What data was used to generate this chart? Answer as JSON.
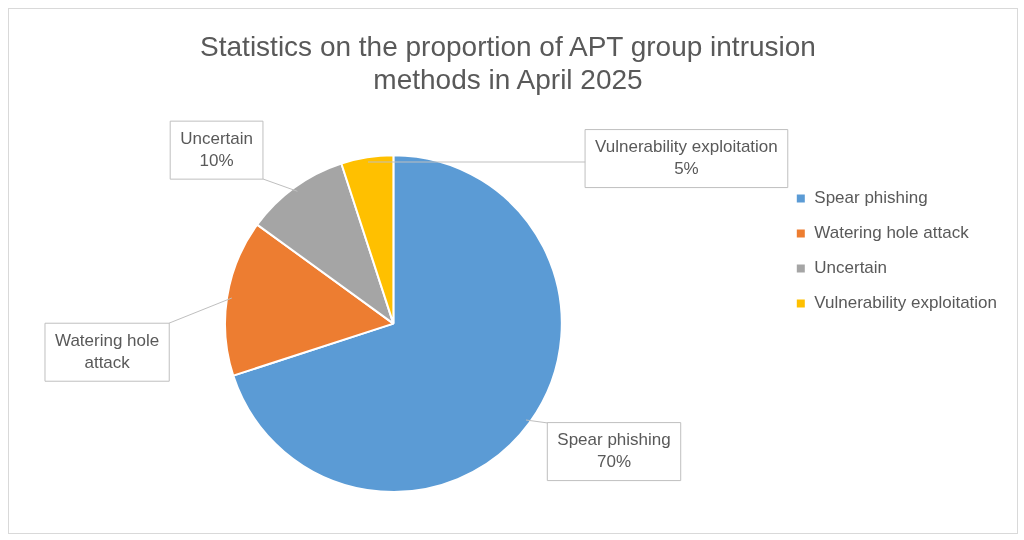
{
  "chart_data": {
    "type": "pie",
    "title": "Statistics on the proportion of APT group intrusion methods in April 2025",
    "categories": [
      "Spear phishing",
      "Watering hole attack",
      "Uncertain",
      "Vulnerability exploitation"
    ],
    "values": [
      70,
      15,
      10,
      5
    ],
    "colors": [
      "#5b9bd5",
      "#ed7d31",
      "#a5a5a5",
      "#ffc000"
    ],
    "value_labels": [
      "70%",
      null,
      "10%",
      "5%"
    ],
    "legend": "right"
  }
}
